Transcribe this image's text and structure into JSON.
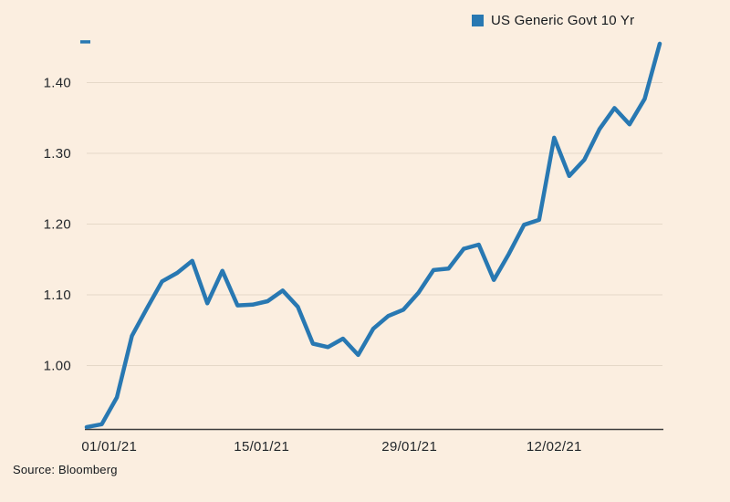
{
  "legend": {
    "label": "US Generic Govt 10 Yr",
    "swatch_color": "#2878b2"
  },
  "source": {
    "text": "Source: Bloomberg"
  },
  "colors": {
    "background": "#fbeee0",
    "line": "#2878b2",
    "grid": "#e5d8c8",
    "axis": "#3d3d3d",
    "text": "#23272b"
  },
  "chart_data": {
    "type": "line",
    "title": "",
    "xlabel": "",
    "ylabel": "",
    "grid": true,
    "legend_position": "top-right",
    "ylim": [
      0.91,
      1.46
    ],
    "yticks": [
      1.0,
      1.1,
      1.2,
      1.3,
      1.4
    ],
    "ytick_labels": [
      "1.00",
      "1.10",
      "1.20",
      "1.30",
      "1.40"
    ],
    "xticks": [
      {
        "label": "01/01/21",
        "index": 1.5
      },
      {
        "label": "15/01/21",
        "index": 11.6
      },
      {
        "label": "29/01/21",
        "index": 21.4
      },
      {
        "label": "12/02/21",
        "index": 31.0
      }
    ],
    "series": [
      {
        "name": "US Generic Govt 10 Yr",
        "color": "#2878b2",
        "x": [
          "31/12/20",
          "04/01/21",
          "05/01/21",
          "06/01/21",
          "07/01/21",
          "08/01/21",
          "11/01/21",
          "12/01/21",
          "13/01/21",
          "14/01/21",
          "15/01/21",
          "19/01/21",
          "20/01/21",
          "21/01/21",
          "22/01/21",
          "25/01/21",
          "26/01/21",
          "27/01/21",
          "28/01/21",
          "29/01/21",
          "01/02/21",
          "02/02/21",
          "03/02/21",
          "04/02/21",
          "05/02/21",
          "08/02/21",
          "09/02/21",
          "10/02/21",
          "11/02/21",
          "12/02/21",
          "16/02/21",
          "17/02/21",
          "18/02/21",
          "19/02/21",
          "22/02/21",
          "23/02/21",
          "24/02/21",
          "25/02/21",
          "26/02/21"
        ],
        "values": [
          0.913,
          0.917,
          0.955,
          1.042,
          1.081,
          1.119,
          1.131,
          1.148,
          1.088,
          1.134,
          1.085,
          1.086,
          1.091,
          1.106,
          1.083,
          1.031,
          1.026,
          1.038,
          1.015,
          1.052,
          1.07,
          1.079,
          1.103,
          1.135,
          1.137,
          1.165,
          1.171,
          1.121,
          1.158,
          1.199,
          1.206,
          1.322,
          1.268,
          1.291,
          1.334,
          1.364,
          1.341,
          1.377,
          1.455
        ]
      }
    ]
  }
}
